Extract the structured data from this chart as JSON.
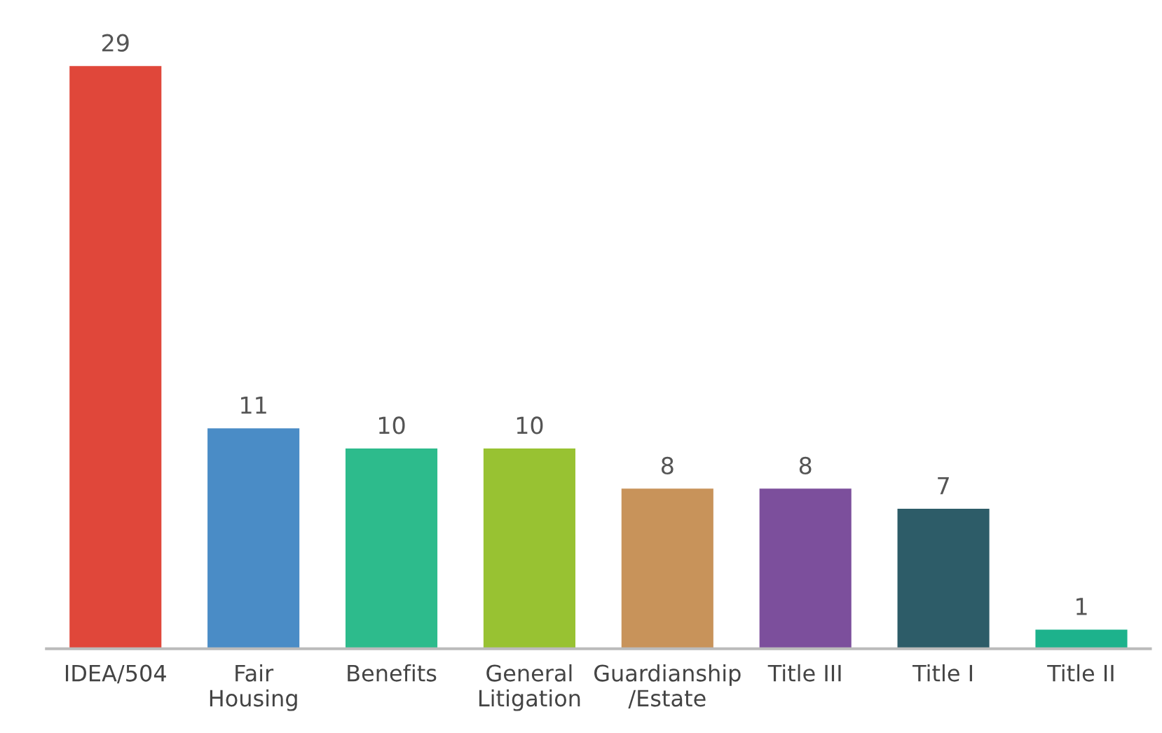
{
  "chart_data": {
    "type": "bar",
    "categories": [
      "IDEA/504",
      "Fair Housing",
      "Benefits",
      "General Litigation",
      "Guardianship /Estate",
      "Title III",
      "Title I",
      "Title II"
    ],
    "values": [
      29,
      11,
      10,
      10,
      8,
      8,
      7,
      1
    ],
    "colors": [
      "#e0473a",
      "#4a8cc6",
      "#2dbb8c",
      "#98c232",
      "#c8935a",
      "#7c4f9c",
      "#2d5c68",
      "#1db28c"
    ],
    "data_labels": true,
    "grid": false,
    "legend": false
  }
}
